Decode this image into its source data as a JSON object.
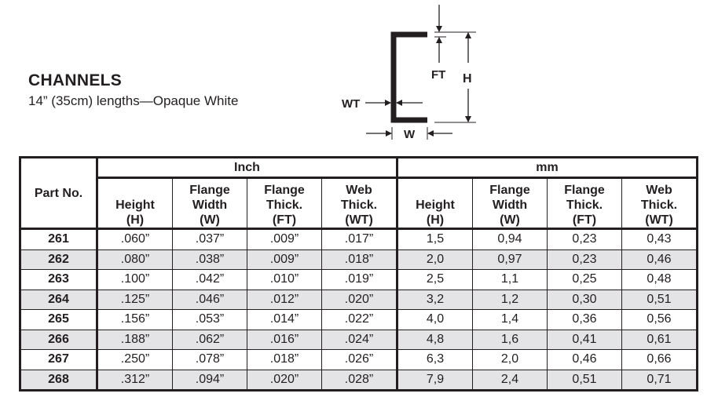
{
  "heading": {
    "title": "CHANNELS",
    "subtitle": "14” (35cm) lengths—Opaque White"
  },
  "diagram": {
    "labels": {
      "ft": "FT",
      "h": "H",
      "wt": "WT",
      "w": "W"
    }
  },
  "table": {
    "part_header": "Part No.",
    "groups": [
      "Inch",
      "mm"
    ],
    "columns": [
      [
        "Height",
        "(H)"
      ],
      [
        "Flange",
        "Width",
        "(W)"
      ],
      [
        "Flange",
        "Thick.",
        "(FT)"
      ],
      [
        "Web",
        "Thick.",
        "(WT)"
      ],
      [
        "Height",
        "(H)"
      ],
      [
        "Flange",
        "Width",
        "(W)"
      ],
      [
        "Flange",
        "Thick.",
        "(FT)"
      ],
      [
        "Web",
        "Thick.",
        "(WT)"
      ]
    ],
    "rows": [
      [
        "261",
        ".060”",
        ".037”",
        ".009”",
        ".017”",
        "1,5",
        "0,94",
        "0,23",
        "0,43"
      ],
      [
        "262",
        ".080”",
        ".038”",
        ".009”",
        ".018”",
        "2,0",
        "0,97",
        "0,23",
        "0,46"
      ],
      [
        "263",
        ".100”",
        ".042”",
        ".010”",
        ".019”",
        "2,5",
        "1,1",
        "0,25",
        "0,48"
      ],
      [
        "264",
        ".125”",
        ".046”",
        ".012”",
        ".020”",
        "3,2",
        "1,2",
        "0,30",
        "0,51"
      ],
      [
        "265",
        ".156”",
        ".053”",
        ".014”",
        ".022”",
        "4,0",
        "1,4",
        "0,36",
        "0,56"
      ],
      [
        "266",
        ".188”",
        ".062”",
        ".016”",
        ".024”",
        "4,8",
        "1,6",
        "0,41",
        "0,61"
      ],
      [
        "267",
        ".250”",
        ".078”",
        ".018”",
        ".026”",
        "6,3",
        "2,0",
        "0,46",
        "0,66"
      ],
      [
        "268",
        ".312”",
        ".094”",
        ".020”",
        ".028”",
        "7,9",
        "2,4",
        "0,51",
        "0,71"
      ]
    ],
    "alt_row_color": "#e4e4e6"
  }
}
